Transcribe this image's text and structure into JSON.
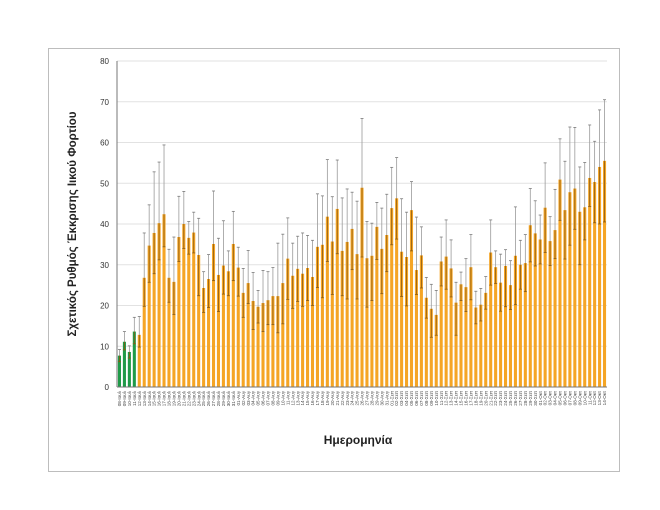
{
  "chart_data": {
    "type": "bar",
    "title": "",
    "xlabel": "Ημερομηνία",
    "ylabel": "Σχετικός Ρυθμός Έκκρισης Ιικού Φορτίου",
    "ylim": [
      0,
      80
    ],
    "yticks": [
      0,
      10,
      20,
      30,
      40,
      50,
      60,
      70,
      80
    ],
    "grid": true,
    "legend": "none",
    "colors": {
      "green": "#1f9a48",
      "orange": "#f5a525",
      "error": "#7a7a7a",
      "grid": "#e2e2e2"
    },
    "green_count": 4,
    "categories": [
      "08-Ιουλ",
      "09-Ιουλ",
      "10-Ιουλ",
      "11-Ιουλ",
      "12-Ιουλ",
      "13-Ιουλ",
      "14-Ιουλ",
      "15-Ιουλ",
      "16-Ιουλ",
      "17-Ιουλ",
      "18-Ιουλ",
      "19-Ιουλ",
      "20-Ιουλ",
      "21-Ιουλ",
      "22-Ιουλ",
      "23-Ιουλ",
      "24-Ιουλ",
      "25-Ιουλ",
      "26-Ιουλ",
      "27-Ιουλ",
      "28-Ιουλ",
      "29-Ιουλ",
      "30-Ιουλ",
      "31-Ιουλ",
      "01-Αυγ",
      "02-Αυγ",
      "03-Αυγ",
      "04-Αυγ",
      "05-Αυγ",
      "06-Αυγ",
      "07-Αυγ",
      "08-Αυγ",
      "09-Αυγ",
      "10-Αυγ",
      "11-Αυγ",
      "12-Αυγ",
      "13-Αυγ",
      "14-Αυγ",
      "15-Αυγ",
      "16-Αυγ",
      "17-Αυγ",
      "18-Αυγ",
      "19-Αυγ",
      "20-Αυγ",
      "21-Αυγ",
      "22-Αυγ",
      "23-Αυγ",
      "24-Αυγ",
      "25-Αυγ",
      "26-Αυγ",
      "27-Αυγ",
      "28-Αυγ",
      "29-Αυγ",
      "30-Αυγ",
      "31-Αυγ",
      "01-Σεπ",
      "02-Σεπ",
      "03-Σεπ",
      "04-Σεπ",
      "05-Σεπ",
      "06-Σεπ",
      "07-Σεπ",
      "08-Σεπ",
      "09-Σεπ",
      "10-Σεπ",
      "11-Σεπ",
      "12-Σεπ",
      "13-Σεπ",
      "14-Σεπ",
      "15-Σεπ",
      "16-Σεπ",
      "17-Σεπ",
      "18-Σεπ",
      "19-Σεπ",
      "20-Σεπ",
      "21-Σεπ",
      "22-Σεπ",
      "23-Σεπ",
      "24-Σεπ",
      "25-Σεπ",
      "26-Σεπ",
      "27-Σεπ",
      "28-Σεπ",
      "29-Σεπ",
      "30-Σεπ",
      "01-Οκτ",
      "02-Οκτ",
      "03-Οκτ",
      "04-Οκτ",
      "05-Οκτ",
      "06-Οκτ",
      "07-Οκτ",
      "08-Οκτ",
      "09-Οκτ",
      "10-Οκτ",
      "11-Οκτ",
      "12-Οκτ",
      "13-Οκτ",
      "14-Οκτ"
    ],
    "values": [
      7.7,
      11.1,
      8.6,
      13.6,
      12.8,
      26.8,
      34.7,
      37.8,
      40.2,
      42.4,
      26.8,
      25.8,
      36.8,
      40.0,
      36.6,
      37.9,
      32.4,
      24.3,
      26.5,
      35.1,
      27.5,
      29.8,
      28.4,
      35.1,
      29.3,
      23.1,
      25.5,
      21.1,
      19.7,
      20.6,
      21.3,
      22.3,
      22.3,
      25.5,
      31.5,
      27.3,
      29.0,
      27.8,
      29.2,
      27.0,
      34.4,
      34.9,
      41.8,
      35.7,
      43.7,
      33.4,
      35.6,
      38.8,
      32.6,
      48.9,
      31.6,
      32.2,
      39.3,
      33.9,
      37.3,
      43.9,
      46.3,
      33.2,
      31.9,
      43.4,
      28.7,
      32.3,
      21.9,
      19.2,
      17.7,
      30.8,
      32.0,
      29.1,
      20.7,
      25.2,
      24.5,
      29.4,
      19.5,
      20.2,
      23.1,
      33.0,
      29.4,
      25.6,
      29.7,
      25.0,
      32.2,
      30.0,
      30.4,
      39.7,
      37.7,
      36.2,
      44.0,
      35.8,
      38.5,
      50.9,
      43.4,
      47.8,
      48.7,
      43.0,
      44.1,
      51.3,
      50.3,
      54.0,
      55.5
    ],
    "error_plus": [
      1.5,
      2.5,
      1.5,
      3.5,
      4.5,
      11,
      10,
      15,
      15,
      17,
      7,
      11,
      10,
      8,
      4,
      5,
      9,
      4,
      6,
      13,
      9,
      11,
      5,
      8,
      5,
      6,
      8,
      7,
      4,
      8,
      7,
      7,
      13,
      12,
      10,
      8,
      8,
      10,
      8,
      9,
      13,
      12,
      14,
      11,
      12,
      13,
      13,
      9,
      13,
      17,
      9,
      8,
      6,
      10,
      10,
      10,
      10,
      13,
      11,
      7,
      13,
      7,
      5,
      6,
      6,
      6,
      9,
      7,
      5,
      3,
      7,
      8,
      4,
      4,
      4,
      8,
      4,
      7,
      4,
      6,
      12,
      6,
      7,
      9,
      8,
      6,
      11,
      6,
      10,
      10,
      12,
      16,
      15,
      11,
      11,
      13,
      10,
      14,
      15
    ],
    "error_minus": [
      1.5,
      2,
      1.5,
      3,
      3,
      7,
      9,
      10,
      9,
      8,
      6,
      8,
      6,
      6,
      4,
      5,
      10,
      6,
      7,
      9,
      9,
      7,
      6,
      9,
      7,
      6,
      5,
      7,
      4,
      7,
      6,
      7,
      9,
      10,
      10,
      8,
      8,
      8,
      8,
      7,
      10,
      13,
      11,
      13,
      11,
      11,
      14,
      10,
      11,
      17,
      12,
      11,
      8,
      11,
      9,
      9,
      10,
      11,
      12,
      10,
      6,
      8,
      5,
      7,
      5,
      6,
      8,
      7,
      8,
      4,
      6,
      8,
      4,
      4,
      4,
      8,
      4,
      7,
      10,
      6,
      12,
      6,
      7,
      9,
      8,
      6,
      11,
      6,
      7,
      10,
      12,
      13,
      10,
      13,
      8,
      7,
      10,
      14,
      15
    ]
  }
}
